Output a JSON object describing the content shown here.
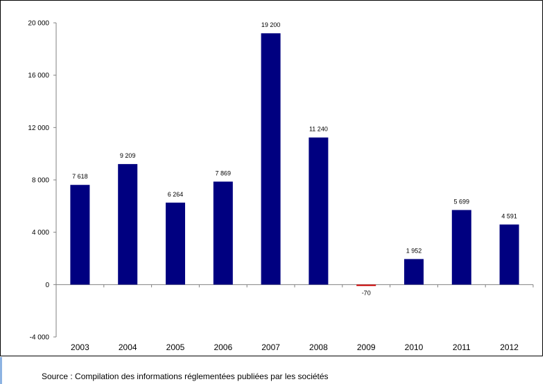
{
  "chart_data": {
    "type": "bar",
    "categories": [
      "2003",
      "2004",
      "2005",
      "2006",
      "2007",
      "2008",
      "2009",
      "2010",
      "2011",
      "2012"
    ],
    "values": [
      7618,
      9209,
      6264,
      7869,
      19200,
      11240,
      -70,
      1952,
      5699,
      4591
    ],
    "data_labels": [
      "7 618",
      "9 209",
      "6 264",
      "7 869",
      "19 200",
      "11 240",
      "-70",
      "1 952",
      "5 699",
      "4 591"
    ],
    "ylim": [
      -4000,
      20000
    ],
    "yticks": [
      -4000,
      0,
      4000,
      8000,
      12000,
      16000,
      20000
    ],
    "ytick_labels": [
      "-4 000",
      "0",
      "4 000",
      "8 000",
      "12 000",
      "16 000",
      "20 000"
    ],
    "title": "",
    "xlabel": "",
    "ylabel": "",
    "grid": false,
    "colors": {
      "positive": "#000080",
      "negative": "#cc0000",
      "axis": "#808080"
    }
  },
  "footer": {
    "source": "Source : Compilation des informations réglementées publiées par les sociétés"
  }
}
